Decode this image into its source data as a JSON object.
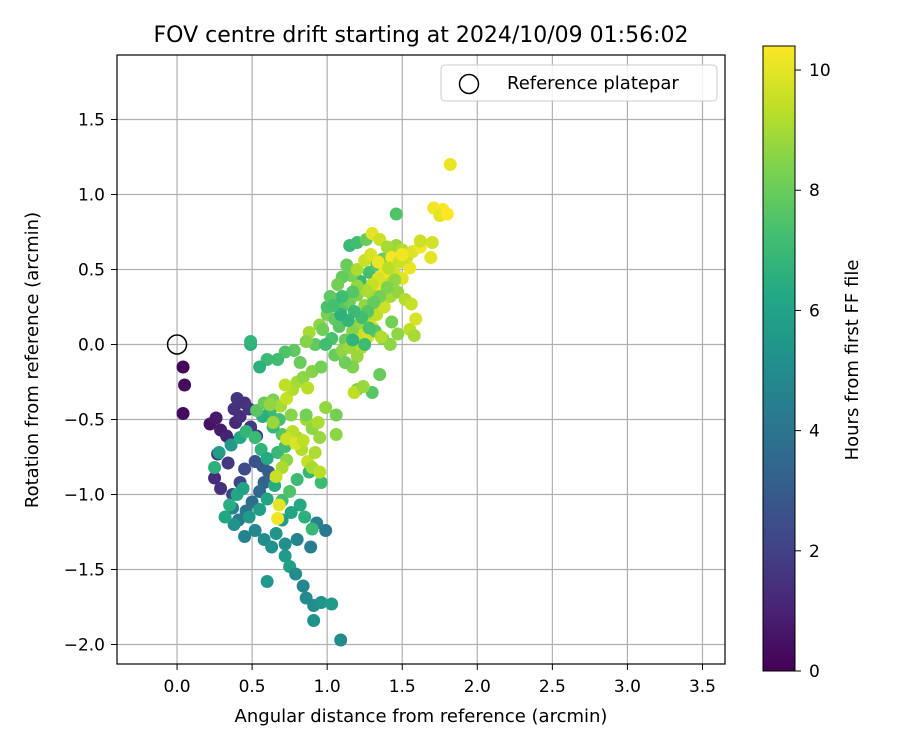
{
  "chart_data": {
    "type": "scatter",
    "title": "FOV centre drift starting at 2024/10/09 01:56:02",
    "xlabel": "Angular distance from reference (arcmin)",
    "ylabel": "Rotation from reference (arcmin)",
    "xlim": [
      -0.4,
      3.65
    ],
    "ylim": [
      -2.13,
      1.93
    ],
    "x_ticks": [
      0.0,
      0.5,
      1.0,
      1.5,
      2.0,
      2.5,
      3.0,
      3.5
    ],
    "x_tick_labels": [
      "0.0",
      "0.5",
      "1.0",
      "1.5",
      "2.0",
      "2.5",
      "3.0",
      "3.5"
    ],
    "y_ticks": [
      -2.0,
      -1.5,
      -1.0,
      -0.5,
      0.0,
      0.5,
      1.0,
      1.5
    ],
    "y_tick_labels": [
      "−2.0",
      "−1.5",
      "−1.0",
      "−0.5",
      "0.0",
      "0.5",
      "1.0",
      "1.5"
    ],
    "grid": true,
    "legend": {
      "position": "top-right",
      "entries": [
        {
          "label": "Reference platepar",
          "marker": "open-circle",
          "color": "#000000"
        }
      ]
    },
    "reference_point": {
      "x": 0.0,
      "y": 0.0
    },
    "colorbar": {
      "label": "Hours from first FF file",
      "min": 0,
      "max": 10.4,
      "ticks": [
        0,
        2,
        4,
        6,
        8,
        10
      ],
      "tick_labels": [
        "0",
        "2",
        "4",
        "6",
        "8",
        "10"
      ],
      "colormap": "viridis"
    },
    "points": [
      [
        0.04,
        -0.15,
        0.1
      ],
      [
        0.05,
        -0.27,
        0.2
      ],
      [
        0.04,
        -0.46,
        0.3
      ],
      [
        0.22,
        -0.53,
        0.5
      ],
      [
        0.26,
        -0.49,
        0.7
      ],
      [
        0.29,
        -0.57,
        0.8
      ],
      [
        0.33,
        -0.61,
        1.0
      ],
      [
        0.36,
        -0.65,
        1.1
      ],
      [
        0.39,
        -0.52,
        1.2
      ],
      [
        0.42,
        -0.48,
        1.4
      ],
      [
        0.38,
        -0.43,
        1.5
      ],
      [
        0.4,
        -0.36,
        1.6
      ],
      [
        0.45,
        -0.39,
        1.5
      ],
      [
        0.48,
        -0.43,
        1.6
      ],
      [
        0.49,
        -0.55,
        1.8
      ],
      [
        0.53,
        -0.61,
        1.9
      ],
      [
        0.34,
        -0.79,
        1.7
      ],
      [
        0.27,
        -0.73,
        1.8
      ],
      [
        0.25,
        -0.89,
        1.3
      ],
      [
        0.29,
        -0.96,
        1.5
      ],
      [
        0.37,
        -1.0,
        2.0
      ],
      [
        0.42,
        -0.92,
        2.2
      ],
      [
        0.45,
        -0.83,
        2.4
      ],
      [
        0.52,
        -0.78,
        2.6
      ],
      [
        0.57,
        -0.81,
        2.8
      ],
      [
        0.61,
        -0.85,
        3.0
      ],
      [
        0.58,
        -0.92,
        3.3
      ],
      [
        0.55,
        -0.98,
        3.5
      ],
      [
        0.5,
        -1.05,
        3.8
      ],
      [
        0.46,
        -1.11,
        4.0
      ],
      [
        0.41,
        -1.17,
        4.2
      ],
      [
        0.37,
        -1.09,
        4.5
      ],
      [
        0.45,
        -1.28,
        4.6
      ],
      [
        0.52,
        -1.24,
        4.8
      ],
      [
        0.58,
        -1.3,
        5.0
      ],
      [
        0.63,
        -1.35,
        5.2
      ],
      [
        0.6,
        -1.58,
        5.5
      ],
      [
        0.72,
        -1.41,
        5.6
      ],
      [
        0.75,
        -1.48,
        5.8
      ],
      [
        0.79,
        -1.53,
        5.0
      ],
      [
        0.84,
        -1.61,
        4.8
      ],
      [
        0.86,
        -1.69,
        4.9
      ],
      [
        0.91,
        -1.74,
        5.0
      ],
      [
        0.96,
        -1.72,
        5.3
      ],
      [
        1.03,
        -1.73,
        5.6
      ],
      [
        0.91,
        -1.84,
        5.2
      ],
      [
        1.09,
        -1.97,
        4.9
      ],
      [
        0.99,
        -1.24,
        4.2
      ],
      [
        0.93,
        -1.19,
        4.6
      ],
      [
        0.89,
        -1.35,
        4.4
      ],
      [
        0.8,
        -1.3,
        4.7
      ],
      [
        0.72,
        -1.33,
        5.1
      ],
      [
        0.66,
        -1.26,
        5.4
      ],
      [
        0.7,
        -1.17,
        5.7
      ],
      [
        0.76,
        -1.12,
        6.0
      ],
      [
        0.82,
        -1.07,
        6.3
      ],
      [
        0.85,
        -1.15,
        6.6
      ],
      [
        0.9,
        -1.23,
        6.9
      ],
      [
        0.7,
        -1.04,
        7.2
      ],
      [
        0.75,
        -0.98,
        7.5
      ],
      [
        0.8,
        -0.9,
        7.0
      ],
      [
        0.88,
        -0.85,
        6.8
      ],
      [
        0.96,
        -0.92,
        7.1
      ],
      [
        0.65,
        -0.94,
        6.4
      ],
      [
        0.6,
        -1.03,
        6.1
      ],
      [
        0.55,
        -1.1,
        5.9
      ],
      [
        0.48,
        -1.15,
        5.6
      ],
      [
        0.38,
        -1.2,
        5.3
      ],
      [
        0.32,
        -1.15,
        6.2
      ],
      [
        0.35,
        -1.07,
        6.5
      ],
      [
        0.4,
        -1.0,
        6.2
      ],
      [
        0.44,
        -0.96,
        6.0
      ],
      [
        0.25,
        -0.82,
        6.6
      ],
      [
        0.28,
        -0.72,
        5.8
      ],
      [
        0.36,
        -0.67,
        5.5
      ],
      [
        0.42,
        -0.62,
        6.2
      ],
      [
        0.46,
        -0.58,
        6.8
      ],
      [
        0.52,
        -0.62,
        7.0
      ],
      [
        0.56,
        -0.7,
        6.7
      ],
      [
        0.6,
        -0.76,
        6.3
      ],
      [
        0.67,
        -0.72,
        6.9
      ],
      [
        0.72,
        -0.68,
        7.2
      ],
      [
        0.7,
        -0.6,
        7.6
      ],
      [
        0.64,
        -0.55,
        6.9
      ],
      [
        0.68,
        -0.5,
        7.3
      ],
      [
        0.62,
        -0.45,
        7.0
      ],
      [
        0.57,
        -0.48,
        6.5
      ],
      [
        0.53,
        -0.44,
        7.7
      ],
      [
        0.58,
        -0.39,
        8.0
      ],
      [
        0.64,
        -0.37,
        8.3
      ],
      [
        0.69,
        -0.41,
        9.0
      ],
      [
        0.73,
        -0.36,
        9.5
      ],
      [
        0.77,
        -0.3,
        9.2
      ],
      [
        0.72,
        -0.27,
        9.4
      ],
      [
        0.8,
        -0.25,
        9.0
      ],
      [
        0.84,
        -0.22,
        8.6
      ],
      [
        0.87,
        -0.29,
        9.3
      ],
      [
        0.9,
        -0.18,
        8.5
      ],
      [
        0.96,
        -0.15,
        8.2
      ],
      [
        0.82,
        -0.12,
        8.0
      ],
      [
        0.78,
        -0.04,
        7.8
      ],
      [
        0.72,
        -0.05,
        7.5
      ],
      [
        0.67,
        -0.1,
        7.2
      ],
      [
        0.6,
        -0.1,
        7.0
      ],
      [
        0.49,
        0.0,
        6.5
      ],
      [
        0.49,
        0.02,
        6.8
      ],
      [
        0.55,
        -0.15,
        6.6
      ],
      [
        0.76,
        -0.47,
        8.5
      ],
      [
        0.8,
        -0.62,
        9.0
      ],
      [
        0.83,
        -0.7,
        9.2
      ],
      [
        0.87,
        -0.78,
        9.5
      ],
      [
        0.92,
        -0.72,
        9.1
      ],
      [
        0.95,
        -0.62,
        8.8
      ],
      [
        0.9,
        -0.56,
        8.6
      ],
      [
        0.86,
        -0.5,
        8.9
      ],
      [
        0.77,
        -0.58,
        9.3
      ],
      [
        0.73,
        -0.63,
        9.6
      ],
      [
        0.79,
        -0.66,
        9.8
      ],
      [
        0.84,
        -0.64,
        9.4
      ],
      [
        0.9,
        -0.82,
        9.0
      ],
      [
        0.95,
        -0.85,
        9.3
      ],
      [
        0.94,
        -0.52,
        9.1
      ],
      [
        0.99,
        -0.42,
        8.7
      ],
      [
        0.86,
        -0.47,
        8.2
      ],
      [
        0.73,
        -0.77,
        8.6
      ],
      [
        0.7,
        -0.82,
        9.1
      ],
      [
        0.66,
        -0.88,
        9.5
      ],
      [
        0.68,
        -1.07,
        10.0
      ],
      [
        0.67,
        -1.16,
        10.2
      ],
      [
        0.64,
        -0.52,
        8.8
      ],
      [
        0.62,
        -0.4,
        8.7
      ],
      [
        1.06,
        -0.47,
        8.2
      ],
      [
        1.06,
        -0.6,
        8.6
      ],
      [
        0.92,
        0.0,
        7.8
      ],
      [
        0.88,
        0.08,
        9.0
      ],
      [
        0.95,
        0.13,
        8.6
      ],
      [
        1.0,
        0.2,
        8.3
      ],
      [
        1.05,
        0.17,
        7.9
      ],
      [
        1.1,
        0.25,
        7.6
      ],
      [
        1.15,
        0.29,
        8.1
      ],
      [
        1.2,
        0.33,
        8.4
      ],
      [
        1.25,
        0.26,
        8.7
      ],
      [
        1.3,
        0.33,
        9.0
      ],
      [
        1.35,
        0.39,
        9.3
      ],
      [
        1.4,
        0.43,
        9.5
      ],
      [
        1.45,
        0.47,
        9.7
      ],
      [
        1.5,
        0.44,
        9.9
      ],
      [
        1.55,
        0.51,
        10.1
      ],
      [
        1.37,
        0.36,
        10.2
      ],
      [
        1.32,
        0.27,
        9.8
      ],
      [
        1.28,
        0.19,
        9.1
      ],
      [
        1.22,
        0.14,
        8.8
      ],
      [
        1.17,
        0.09,
        8.5
      ],
      [
        1.12,
        0.03,
        8.0
      ],
      [
        1.08,
        0.12,
        7.7
      ],
      [
        1.03,
        0.04,
        7.4
      ],
      [
        0.99,
        0.0,
        7.2
      ],
      [
        1.05,
        -0.07,
        8.0
      ],
      [
        1.1,
        -0.04,
        8.6
      ],
      [
        1.15,
        -0.02,
        8.9
      ],
      [
        1.2,
        0.03,
        9.3
      ],
      [
        1.25,
        0.07,
        9.6
      ],
      [
        1.3,
        0.12,
        9.9
      ],
      [
        1.27,
        0.05,
        9.7
      ],
      [
        1.23,
        -0.02,
        9.2
      ],
      [
        1.2,
        -0.08,
        8.8
      ],
      [
        1.17,
        -0.15,
        8.4
      ],
      [
        1.12,
        -0.12,
        8.1
      ],
      [
        1.33,
        0.2,
        9.4
      ],
      [
        1.38,
        0.25,
        9.6
      ],
      [
        1.42,
        0.32,
        9.0
      ],
      [
        1.47,
        0.35,
        8.7
      ],
      [
        1.52,
        0.3,
        9.2
      ],
      [
        1.56,
        0.27,
        9.5
      ],
      [
        1.59,
        0.17,
        9.8
      ],
      [
        1.55,
        0.1,
        9.4
      ],
      [
        1.58,
        0.06,
        9.0
      ],
      [
        1.47,
        0.07,
        8.6
      ],
      [
        1.43,
        0.15,
        8.2
      ],
      [
        1.37,
        0.04,
        8.0
      ],
      [
        1.32,
        0.09,
        7.7
      ],
      [
        1.28,
        0.11,
        7.4
      ],
      [
        1.25,
        0.0,
        7.1
      ],
      [
        1.17,
        0.03,
        6.8
      ],
      [
        1.22,
        0.42,
        6.9
      ],
      [
        1.28,
        0.48,
        7.3
      ],
      [
        1.33,
        0.53,
        7.6
      ],
      [
        1.37,
        0.57,
        8.0
      ],
      [
        1.42,
        0.62,
        8.4
      ],
      [
        1.46,
        0.66,
        8.8
      ],
      [
        1.5,
        0.63,
        9.2
      ],
      [
        1.53,
        0.58,
        9.6
      ],
      [
        1.57,
        0.62,
        9.9
      ],
      [
        1.62,
        0.65,
        10.2
      ],
      [
        1.46,
        0.87,
        7.5
      ],
      [
        1.15,
        0.66,
        7.0
      ],
      [
        1.2,
        0.68,
        7.2
      ],
      [
        1.26,
        0.7,
        8.0
      ],
      [
        1.3,
        0.74,
        10.0
      ],
      [
        1.35,
        0.7,
        9.6
      ],
      [
        1.4,
        0.65,
        9.0
      ],
      [
        1.43,
        0.58,
        10.3
      ],
      [
        1.38,
        0.48,
        10.1
      ],
      [
        1.34,
        0.44,
        9.8
      ],
      [
        1.3,
        0.4,
        9.5
      ],
      [
        1.26,
        0.36,
        9.1
      ],
      [
        1.2,
        0.39,
        8.7
      ],
      [
        1.16,
        0.46,
        8.3
      ],
      [
        1.13,
        0.53,
        8.0
      ],
      [
        1.17,
        0.35,
        7.6
      ],
      [
        1.1,
        0.32,
        7.2
      ],
      [
        1.05,
        0.3,
        6.9
      ],
      [
        1.0,
        0.25,
        7.4
      ],
      [
        1.02,
        0.32,
        7.8
      ],
      [
        0.97,
        0.1,
        8.1
      ],
      [
        0.86,
        0.02,
        8.5
      ],
      [
        1.62,
        0.69,
        9.6
      ],
      [
        1.69,
        0.58,
        10.0
      ],
      [
        1.7,
        0.68,
        9.7
      ],
      [
        1.71,
        0.91,
        10.2
      ],
      [
        1.77,
        0.9,
        10.3
      ],
      [
        1.75,
        0.86,
        10.0
      ],
      [
        1.8,
        0.87,
        10.4
      ],
      [
        1.82,
        1.2,
        10.1
      ],
      [
        1.2,
        0.5,
        9.1
      ],
      [
        1.25,
        0.56,
        9.5
      ],
      [
        1.29,
        0.6,
        9.8
      ],
      [
        1.34,
        0.55,
        10.1
      ],
      [
        1.41,
        0.51,
        9.3
      ],
      [
        1.48,
        0.55,
        9.6
      ],
      [
        1.5,
        0.6,
        10.2
      ],
      [
        1.45,
        0.43,
        8.7
      ],
      [
        1.4,
        0.38,
        8.4
      ],
      [
        1.35,
        0.32,
        8.2
      ],
      [
        1.31,
        0.28,
        7.9
      ],
      [
        1.27,
        0.22,
        7.6
      ],
      [
        1.23,
        0.18,
        7.2
      ],
      [
        1.18,
        0.22,
        7.0
      ],
      [
        1.14,
        0.16,
        6.8
      ],
      [
        1.09,
        0.2,
        6.6
      ],
      [
        1.04,
        0.26,
        7.3
      ],
      [
        1.1,
        0.45,
        7.9
      ],
      [
        1.07,
        0.4,
        8.2
      ],
      [
        1.35,
        -0.2,
        8.0
      ],
      [
        1.3,
        -0.32,
        7.6
      ],
      [
        1.2,
        -0.3,
        8.3
      ],
      [
        1.18,
        -0.32,
        9.4
      ],
      [
        1.42,
        0.0,
        8.6
      ],
      [
        1.36,
        0.05,
        9.2
      ],
      [
        1.24,
        -0.28,
        8.8
      ]
    ]
  }
}
